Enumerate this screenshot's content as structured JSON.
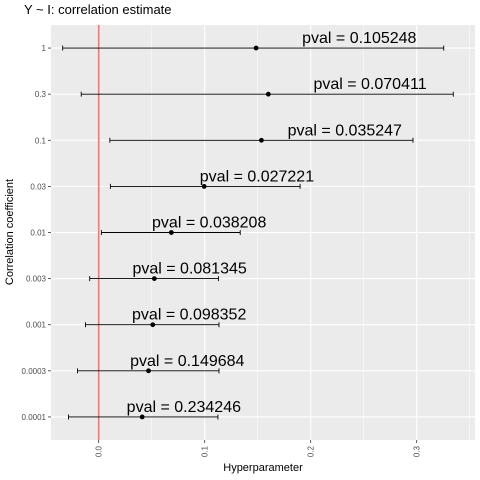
{
  "chart_data": {
    "type": "scatter",
    "title": "Y ~ I: correlation estimate",
    "xlabel": "Hyperparameter",
    "ylabel": "Correlation coefficient",
    "xlim": [
      -0.045,
      0.355
    ],
    "x_ticks": [
      "0.0",
      "0.1",
      "0.2",
      "0.3"
    ],
    "x_tick_values": [
      0.0,
      0.1,
      0.2,
      0.3
    ],
    "vline_x": 0.0,
    "vline_color": "#f8766d",
    "grid": true,
    "panel_color": "#ebebeb",
    "categories": [
      "1",
      "0.3",
      "0.1",
      "0.03",
      "0.01",
      "0.003",
      "0.001",
      "0.0003",
      "0.0001"
    ],
    "points": [
      {
        "y": "1",
        "estimate": 0.1485,
        "lower": -0.034,
        "upper": 0.3255,
        "label": "pval = 0.105248"
      },
      {
        "y": "0.3",
        "estimate": 0.16,
        "lower": -0.0165,
        "upper": 0.3345,
        "label": "pval = 0.070411"
      },
      {
        "y": "0.1",
        "estimate": 0.1535,
        "lower": 0.0105,
        "upper": 0.2965,
        "label": "pval = 0.035247"
      },
      {
        "y": "0.03",
        "estimate": 0.0995,
        "lower": 0.011,
        "upper": 0.19,
        "label": "pval = 0.027221"
      },
      {
        "y": "0.01",
        "estimate": 0.0685,
        "lower": 0.0025,
        "upper": 0.1335,
        "label": "pval = 0.038208"
      },
      {
        "y": "0.003",
        "estimate": 0.0525,
        "lower": -0.0085,
        "upper": 0.113,
        "label": "pval = 0.081345"
      },
      {
        "y": "0.001",
        "estimate": 0.051,
        "lower": -0.0125,
        "upper": 0.1135,
        "label": "pval = 0.098352"
      },
      {
        "y": "0.0003",
        "estimate": 0.047,
        "lower": -0.02,
        "upper": 0.1135,
        "label": "pval = 0.149684"
      },
      {
        "y": "0.0001",
        "estimate": 0.041,
        "lower": -0.0285,
        "upper": 0.1125,
        "label": "pval = 0.234246"
      }
    ]
  }
}
